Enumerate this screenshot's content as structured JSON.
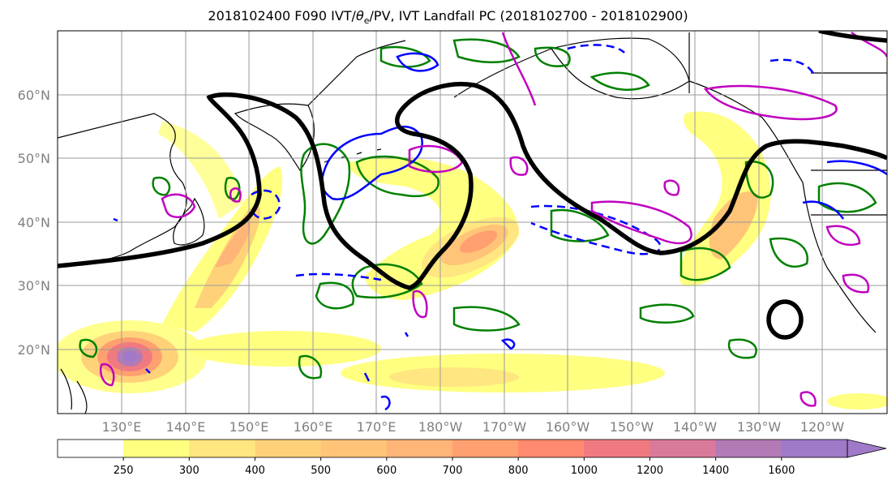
{
  "title_text": "2018102400 F090 IVT/",
  "title_theta": "θ",
  "title_sub": "e",
  "title_rest": "/PV, IVT Landfall PC (2018102700 - 2018102900)",
  "lat_labels": [
    "60°N",
    "50°N",
    "40°N",
    "30°N",
    "20°N"
  ],
  "lon_labels": [
    "130°E",
    "140°E",
    "150°E",
    "160°E",
    "170°E",
    "180°W",
    "170°W",
    "160°W",
    "150°W",
    "140°W",
    "130°W",
    "120°W"
  ],
  "colorbar": {
    "ticks": [
      "250",
      "300",
      "400",
      "500",
      "600",
      "700",
      "800",
      "1000",
      "1200",
      "1400",
      "1600"
    ],
    "colors": [
      "#ffffff",
      "#ffff80",
      "#ffe680",
      "#ffd27a",
      "#ffc478",
      "#ffb478",
      "#ffa070",
      "#ff8a70",
      "#f07a80",
      "#d97a9a",
      "#b37ab5",
      "#a07ac8"
    ]
  },
  "contour_colors": {
    "pc": "#000000",
    "pv": "#0000ff",
    "theta_e": "#008000",
    "ivt_high": "#c000c0"
  }
}
